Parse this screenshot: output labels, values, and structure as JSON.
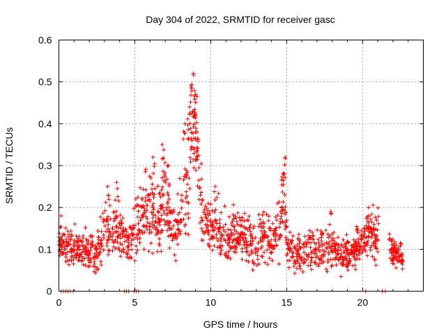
{
  "chart_data": {
    "type": "scatter",
    "title": "Day 304 of 2022, SRMTID for receiver gasc",
    "xlabel": "GPS time / hours",
    "ylabel": "SRMTID / TECUs",
    "xlim": [
      0,
      24
    ],
    "ylim": [
      0,
      0.6
    ],
    "xticks": [
      0,
      5,
      10,
      15,
      20
    ],
    "xtick_labels": [
      "0",
      "5",
      "10",
      "15",
      "20"
    ],
    "yticks": [
      0,
      0.1,
      0.2,
      0.3,
      0.4,
      0.5,
      0.6
    ],
    "ytick_labels": [
      "0",
      "0.1",
      "0.2",
      "0.3",
      "0.4",
      "0.5",
      "0.6"
    ],
    "grid": true,
    "marker": "+",
    "color": "#ff0000",
    "series": [
      {
        "name": "SRMTID",
        "profile": [
          [
            0.0,
            0.11,
            0.04
          ],
          [
            0.5,
            0.1,
            0.04
          ],
          [
            1.0,
            0.1,
            0.04
          ],
          [
            1.5,
            0.11,
            0.04
          ],
          [
            2.0,
            0.1,
            0.04
          ],
          [
            2.5,
            0.09,
            0.04
          ],
          [
            3.0,
            0.15,
            0.06
          ],
          [
            3.5,
            0.14,
            0.05
          ],
          [
            4.0,
            0.15,
            0.06
          ],
          [
            4.5,
            0.1,
            0.04
          ],
          [
            5.0,
            0.14,
            0.06
          ],
          [
            5.5,
            0.18,
            0.07
          ],
          [
            6.0,
            0.19,
            0.08
          ],
          [
            6.5,
            0.16,
            0.06
          ],
          [
            7.0,
            0.22,
            0.09
          ],
          [
            7.5,
            0.14,
            0.05
          ],
          [
            8.0,
            0.18,
            0.07
          ],
          [
            8.5,
            0.28,
            0.12
          ],
          [
            8.8,
            0.42,
            0.1
          ],
          [
            9.0,
            0.36,
            0.1
          ],
          [
            9.3,
            0.22,
            0.08
          ],
          [
            9.6,
            0.18,
            0.06
          ],
          [
            10.0,
            0.14,
            0.05
          ],
          [
            10.5,
            0.15,
            0.06
          ],
          [
            11.0,
            0.12,
            0.05
          ],
          [
            11.5,
            0.14,
            0.05
          ],
          [
            12.0,
            0.14,
            0.05
          ],
          [
            12.5,
            0.12,
            0.05
          ],
          [
            13.0,
            0.11,
            0.05
          ],
          [
            13.5,
            0.15,
            0.06
          ],
          [
            14.0,
            0.1,
            0.04
          ],
          [
            14.5,
            0.16,
            0.07
          ],
          [
            14.8,
            0.23,
            0.08
          ],
          [
            15.0,
            0.12,
            0.05
          ],
          [
            15.5,
            0.09,
            0.04
          ],
          [
            16.0,
            0.09,
            0.04
          ],
          [
            16.5,
            0.1,
            0.04
          ],
          [
            17.0,
            0.1,
            0.04
          ],
          [
            17.5,
            0.1,
            0.04
          ],
          [
            18.0,
            0.1,
            0.04
          ],
          [
            18.5,
            0.09,
            0.04
          ],
          [
            19.0,
            0.09,
            0.04
          ],
          [
            19.5,
            0.1,
            0.04
          ],
          [
            20.0,
            0.12,
            0.05
          ],
          [
            20.5,
            0.14,
            0.05
          ],
          [
            21.0,
            0.13,
            0.05
          ],
          [
            21.5,
            0.11,
            0.04
          ],
          [
            22.0,
            0.09,
            0.03
          ],
          [
            22.7,
            0.08,
            0.03
          ]
        ],
        "coverage_hours": [
          0.0,
          22.7
        ],
        "gap_hours": [
          [
            21.05,
            21.75
          ]
        ],
        "zero_value_hours": [
          0.15,
          0.3,
          0.45,
          0.6,
          0.75,
          0.95,
          4.3,
          4.45,
          4.6,
          4.95,
          5.1,
          5.25,
          20.2,
          21.3,
          21.5
        ],
        "peaks": [
          {
            "x": 8.85,
            "y": 0.52
          },
          {
            "x": 8.7,
            "y": 0.49
          },
          {
            "x": 9.0,
            "y": 0.47
          },
          {
            "x": 8.6,
            "y": 0.44
          },
          {
            "x": 8.3,
            "y": 0.4
          },
          {
            "x": 9.1,
            "y": 0.38
          },
          {
            "x": 6.8,
            "y": 0.35
          },
          {
            "x": 14.9,
            "y": 0.32
          },
          {
            "x": 6.2,
            "y": 0.32
          },
          {
            "x": 7.2,
            "y": 0.3
          },
          {
            "x": 14.8,
            "y": 0.28
          },
          {
            "x": 10.3,
            "y": 0.25
          },
          {
            "x": 3.2,
            "y": 0.25
          },
          {
            "x": 3.8,
            "y": 0.26
          },
          {
            "x": 17.9,
            "y": 0.19
          },
          {
            "x": 20.4,
            "y": 0.2
          },
          {
            "x": 0.15,
            "y": 0.18
          }
        ]
      }
    ]
  }
}
